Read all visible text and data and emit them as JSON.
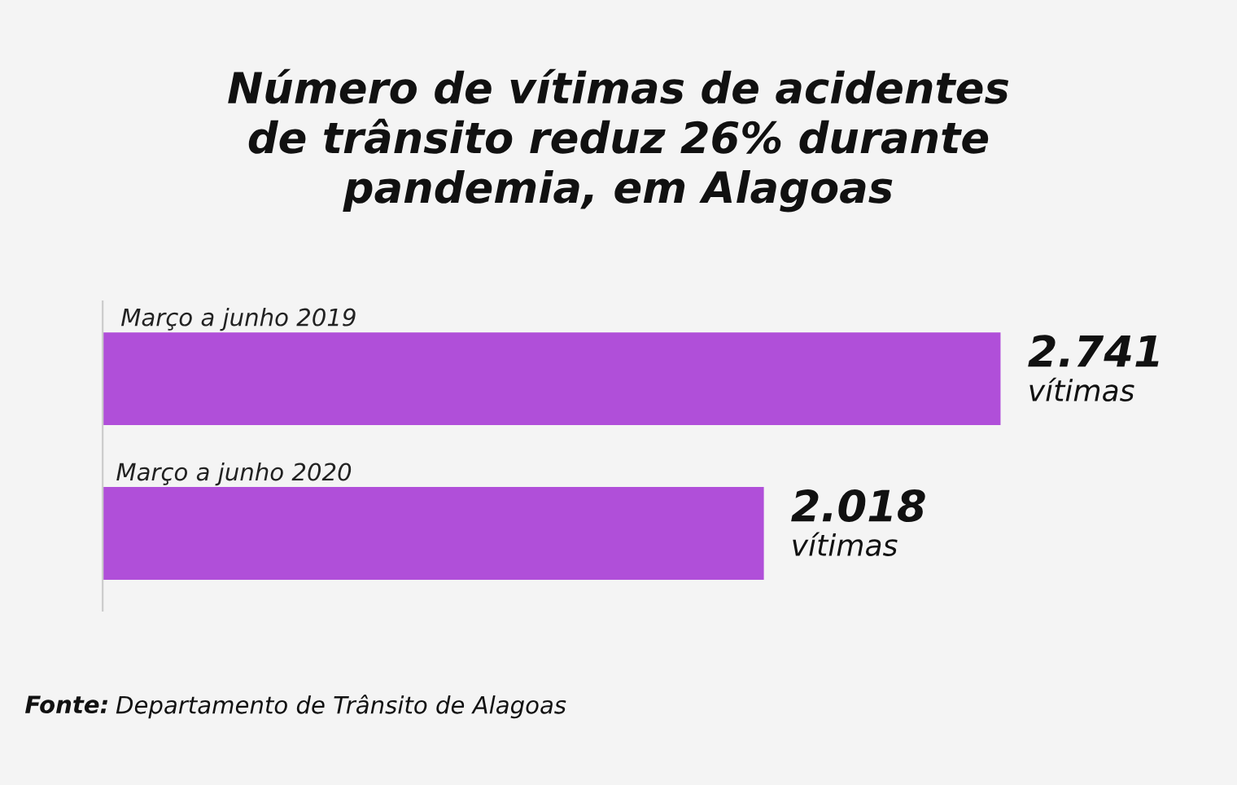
{
  "chart_data": {
    "type": "bar",
    "orientation": "horizontal",
    "title": "Número de vítimas de acidentes\nde trânsito reduz 26% durante\npandemia, em Alagoas",
    "categories": [
      "Março a junho 2019",
      "Março a junho 2020"
    ],
    "values": [
      2741,
      2018
    ],
    "colors": [
      "#b04fd9",
      "#b04fd9"
    ],
    "value_labels": [
      "2.741\nvítimas",
      "2.018\nvítimas"
    ],
    "annotations": [
      "Fonte: Departamento de Trânsito de Alagoas"
    ],
    "legend": false
  }
}
